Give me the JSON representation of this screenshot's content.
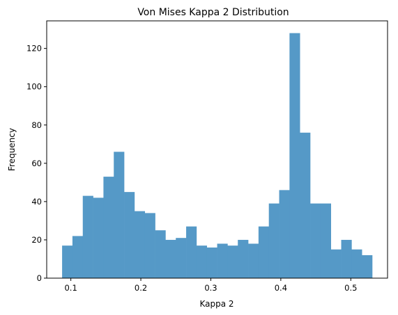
{
  "chart_data": {
    "type": "bar",
    "title": "Von Mises Kappa 2 Distribution",
    "xlabel": "Kappa 2",
    "ylabel": "Frequency",
    "xlim": [
      0.0655,
      0.5525
    ],
    "ylim": [
      0,
      134.4
    ],
    "xticks": [
      0.1,
      0.2,
      0.3,
      0.4,
      0.5
    ],
    "xtick_labels": [
      "0.1",
      "0.2",
      "0.3",
      "0.4",
      "0.5"
    ],
    "yticks": [
      0,
      20,
      40,
      60,
      80,
      100,
      120
    ],
    "ytick_labels": [
      "0",
      "20",
      "40",
      "60",
      "80",
      "100",
      "120"
    ],
    "bin_start": 0.0875,
    "bin_width": 0.01477,
    "values": [
      17,
      22,
      43,
      42,
      53,
      66,
      45,
      35,
      34,
      25,
      20,
      21,
      27,
      17,
      16,
      18,
      17,
      20,
      18,
      27,
      39,
      46,
      128,
      76,
      39,
      39,
      15,
      20,
      15,
      12
    ],
    "bar_color": "#5599c7",
    "grid": false,
    "legend": false
  }
}
